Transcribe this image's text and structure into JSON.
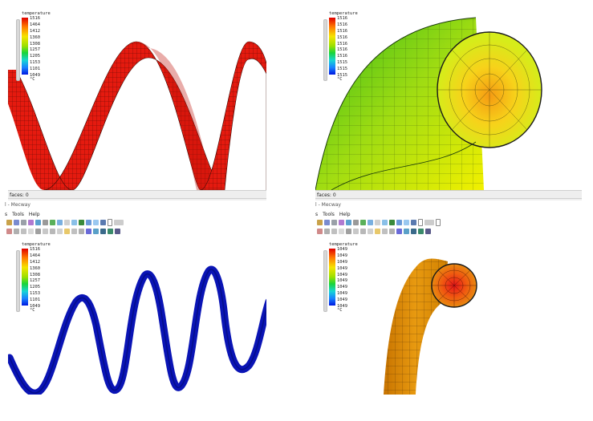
{
  "legend": {
    "title": "temperature",
    "unit": "°C",
    "tl_ticks": [
      "1516",
      "1464",
      "1412",
      "1360",
      "1308",
      "1257",
      "1205",
      "1153",
      "1101",
      "1049"
    ],
    "tr_ticks": [
      "1516",
      "1516",
      "1516",
      "1516",
      "1516",
      "1516",
      "1516",
      "1515",
      "1515",
      "1515"
    ],
    "bl_ticks": [
      "1516",
      "1464",
      "1412",
      "1360",
      "1308",
      "1257",
      "1205",
      "1153",
      "1101",
      "1049"
    ],
    "br_ticks": [
      "1049",
      "1049",
      "1049",
      "1049",
      "1049",
      "1049",
      "1049",
      "1049",
      "1049",
      "1049"
    ]
  },
  "status": {
    "left": "faces: 0",
    "right": "faces: 0"
  },
  "window": {
    "title_left": "l - Mecway",
    "title_right": "l - Mecway"
  },
  "menu": {
    "left": [
      "s",
      "Tools",
      "Help"
    ],
    "right": [
      "s",
      "Tools",
      "Help"
    ]
  },
  "colors": {
    "hot": "#e51a0f",
    "cold": "#0a14b5",
    "green": "#5ccc1a",
    "orange": "#e08c00"
  }
}
